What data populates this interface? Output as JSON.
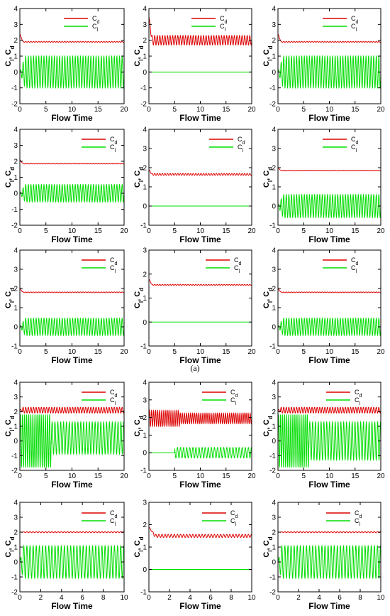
{
  "caption": "(a)",
  "colors": {
    "cd": "#dd0000",
    "cl": "#00dd00"
  },
  "chart_data": [
    {
      "type": "line",
      "xlabel": "Flow Time",
      "ylabel": "C_l, C_d",
      "xlim": [
        0,
        20
      ],
      "ylim": [
        -2,
        4
      ],
      "xticks": [
        0,
        5,
        10,
        15,
        20
      ],
      "yticks": [
        -2,
        -1,
        0,
        1,
        2,
        3,
        4
      ],
      "series": [
        {
          "name": "C_d",
          "mean": 1.9,
          "amplitude": 0.03,
          "period": 0.5,
          "initial_peak": 2.4
        },
        {
          "name": "C_l",
          "mean": 0.0,
          "amplitude": 1.0,
          "period": 0.5,
          "growth_time": 1.0
        }
      ]
    },
    {
      "type": "line",
      "xlabel": "Flow Time",
      "ylabel": "C_l, C_d",
      "xlim": [
        0,
        20
      ],
      "ylim": [
        -2,
        4
      ],
      "xticks": [
        0,
        5,
        10,
        15,
        20
      ],
      "yticks": [
        -2,
        -1,
        0,
        1,
        2,
        3,
        4
      ],
      "series": [
        {
          "name": "C_d",
          "mean": 2.0,
          "amplitude": 0.3,
          "period": 0.5,
          "initial_peak": 3.5
        },
        {
          "name": "C_l",
          "mean": 0.0,
          "amplitude": 0.0,
          "period": 0.5
        }
      ]
    },
    {
      "type": "line",
      "xlabel": "Flow Time",
      "ylabel": "C_l, C_d",
      "xlim": [
        0,
        20
      ],
      "ylim": [
        -2,
        4
      ],
      "xticks": [
        0,
        5,
        10,
        15,
        20
      ],
      "yticks": [
        -2,
        -1,
        0,
        1,
        2,
        3,
        4
      ],
      "series": [
        {
          "name": "C_d",
          "mean": 1.9,
          "amplitude": 0.03,
          "period": 0.5,
          "initial_peak": 2.4
        },
        {
          "name": "C_l",
          "mean": 0.0,
          "amplitude": 1.0,
          "period": 0.5,
          "growth_time": 1.0
        }
      ]
    },
    {
      "type": "line",
      "xlabel": "Flow Time",
      "ylabel": "C_l, C_d",
      "xlim": [
        0,
        20
      ],
      "ylim": [
        -2,
        4
      ],
      "xticks": [
        0,
        5,
        10,
        15,
        20
      ],
      "yticks": [
        -2,
        -1,
        0,
        1,
        2,
        3,
        4
      ],
      "series": [
        {
          "name": "C_d",
          "mean": 1.85,
          "amplitude": 0.02,
          "period": 0.5,
          "initial_peak": 2.1
        },
        {
          "name": "C_l",
          "mean": 0.0,
          "amplitude": 0.55,
          "period": 0.5,
          "growth_time": 1.0
        }
      ]
    },
    {
      "type": "line",
      "xlabel": "Flow Time",
      "ylabel": "C_l, C_d",
      "xlim": [
        0,
        20
      ],
      "ylim": [
        -1,
        4
      ],
      "xticks": [
        0,
        5,
        10,
        15,
        20
      ],
      "yticks": [
        -1,
        0,
        1,
        2,
        3,
        4
      ],
      "series": [
        {
          "name": "C_d",
          "mean": 1.65,
          "amplitude": 0.05,
          "period": 0.5,
          "initial_peak": 1.9
        },
        {
          "name": "C_l",
          "mean": 0.0,
          "amplitude": 0.0,
          "period": 0.5
        }
      ]
    },
    {
      "type": "line",
      "xlabel": "Flow Time",
      "ylabel": "C_l, C_d",
      "xlim": [
        0,
        20
      ],
      "ylim": [
        -1,
        4
      ],
      "xticks": [
        0,
        5,
        10,
        15,
        20
      ],
      "yticks": [
        -1,
        0,
        1,
        2,
        3,
        4
      ],
      "series": [
        {
          "name": "C_d",
          "mean": 1.85,
          "amplitude": 0.02,
          "period": 0.5,
          "initial_peak": 2.0
        },
        {
          "name": "C_l",
          "mean": 0.0,
          "amplitude": 0.6,
          "period": 0.5,
          "growth_time": 1.0
        }
      ]
    },
    {
      "type": "line",
      "xlabel": "Flow Time",
      "ylabel": "C_l, C_d",
      "xlim": [
        0,
        20
      ],
      "ylim": [
        -1,
        4
      ],
      "xticks": [
        0,
        5,
        10,
        15,
        20
      ],
      "yticks": [
        -1,
        0,
        1,
        2,
        3,
        4
      ],
      "series": [
        {
          "name": "C_d",
          "mean": 1.8,
          "amplitude": 0.02,
          "period": 0.5,
          "initial_peak": 2.0
        },
        {
          "name": "C_l",
          "mean": 0.0,
          "amplitude": 0.45,
          "period": 0.5,
          "growth_time": 1.0
        }
      ]
    },
    {
      "type": "line",
      "xlabel": "Flow Time",
      "ylabel": "C_l, C_d",
      "xlim": [
        0,
        20
      ],
      "ylim": [
        -1,
        3
      ],
      "xticks": [
        0,
        5,
        10,
        15,
        20
      ],
      "yticks": [
        -1,
        0,
        1,
        2,
        3
      ],
      "series": [
        {
          "name": "C_d",
          "mean": 1.55,
          "amplitude": 0.02,
          "period": 0.5,
          "initial_peak": 1.8
        },
        {
          "name": "C_l",
          "mean": 0.0,
          "amplitude": 0.0,
          "period": 0.5
        }
      ]
    },
    {
      "type": "line",
      "xlabel": "Flow Time",
      "ylabel": "C_l, C_d",
      "xlim": [
        0,
        20
      ],
      "ylim": [
        -1,
        4
      ],
      "xticks": [
        0,
        5,
        10,
        15,
        20
      ],
      "yticks": [
        -1,
        0,
        1,
        2,
        3,
        4
      ],
      "series": [
        {
          "name": "C_d",
          "mean": 1.8,
          "amplitude": 0.02,
          "period": 0.5,
          "initial_peak": 2.0
        },
        {
          "name": "C_l",
          "mean": 0.0,
          "amplitude": 0.45,
          "period": 0.5,
          "growth_time": 1.0
        }
      ]
    },
    {
      "type": "line",
      "xlabel": "Flow Time",
      "ylabel": "C_l, C_d",
      "xlim": [
        0,
        20
      ],
      "ylim": [
        -2,
        4
      ],
      "xticks": [
        0,
        5,
        10,
        15,
        20
      ],
      "yticks": [
        -2,
        -1,
        0,
        1,
        2,
        3,
        4
      ],
      "series": [
        {
          "name": "C_d",
          "mean": 2.1,
          "amplitude": 0.2,
          "period": 0.5,
          "initial_peak": 2.1
        },
        {
          "name": "C_l",
          "mean": 0.0,
          "amplitude": 1.8,
          "period": 0.4,
          "change_time": 6,
          "mean_after": 0.2,
          "amplitude_after": 1.1,
          "period_after": 0.55
        }
      ]
    },
    {
      "type": "line",
      "xlabel": "Flow Time",
      "ylabel": "C_l, C_d",
      "xlim": [
        0,
        20
      ],
      "ylim": [
        -1,
        4
      ],
      "xticks": [
        0,
        5,
        10,
        15,
        20
      ],
      "yticks": [
        -1,
        0,
        1,
        2,
        3,
        4
      ],
      "series": [
        {
          "name": "C_d",
          "mean": 1.95,
          "amplitude": 0.45,
          "period": 0.4,
          "change_time": 6,
          "mean_after": 1.95,
          "amplitude_after": 0.3,
          "period_after": 0.4
        },
        {
          "name": "C_l",
          "mean": 0.0,
          "amplitude": 0.0,
          "period": 0.6,
          "change_time": 5,
          "mean_after": 0.0,
          "amplitude_after": 0.3,
          "period_after": 0.6
        }
      ]
    },
    {
      "type": "line",
      "xlabel": "Flow Time",
      "ylabel": "C_l, C_d",
      "xlim": [
        0,
        20
      ],
      "ylim": [
        -2,
        4
      ],
      "xticks": [
        0,
        5,
        10,
        15,
        20
      ],
      "yticks": [
        -2,
        -1,
        0,
        1,
        2,
        3,
        4
      ],
      "series": [
        {
          "name": "C_d",
          "mean": 2.1,
          "amplitude": 0.2,
          "period": 0.5,
          "initial_peak": 2.1
        },
        {
          "name": "C_l",
          "mean": 0.0,
          "amplitude": 1.8,
          "period": 0.4,
          "change_time": 6,
          "mean_after": 0.0,
          "amplitude_after": 1.3,
          "period_after": 0.55
        }
      ]
    },
    {
      "type": "line",
      "xlabel": "Flow Time",
      "ylabel": "C_l, C_d",
      "xlim": [
        0,
        10
      ],
      "ylim": [
        -2,
        4
      ],
      "xticks": [
        0,
        2,
        4,
        6,
        8,
        10
      ],
      "yticks": [
        -2,
        -1,
        0,
        1,
        2,
        3,
        4
      ],
      "series": [
        {
          "name": "C_d",
          "mean": 2.0,
          "amplitude": 0.04,
          "period": 0.3,
          "initial_peak": 2.0
        },
        {
          "name": "C_l",
          "mean": 0.0,
          "amplitude": 1.1,
          "period": 0.3,
          "growth_time": 0.3
        }
      ]
    },
    {
      "type": "line",
      "xlabel": "Flow Time",
      "ylabel": "C_l, C_d",
      "xlim": [
        0,
        10
      ],
      "ylim": [
        -1,
        3
      ],
      "xticks": [
        0,
        2,
        4,
        6,
        8,
        10
      ],
      "yticks": [
        -1,
        0,
        1,
        2,
        3
      ],
      "series": [
        {
          "name": "C_d",
          "mean": 1.5,
          "amplitude": 0.07,
          "period": 0.3,
          "initial_peak": 1.9
        },
        {
          "name": "C_l",
          "mean": 0.0,
          "amplitude": 0.0,
          "period": 0.3
        }
      ]
    },
    {
      "type": "line",
      "xlabel": "Flow Time",
      "ylabel": "C_l, C_d",
      "xlim": [
        0,
        10
      ],
      "ylim": [
        -2,
        4
      ],
      "xticks": [
        0,
        2,
        4,
        6,
        8,
        10
      ],
      "yticks": [
        -2,
        -1,
        0,
        1,
        2,
        3,
        4
      ],
      "series": [
        {
          "name": "C_d",
          "mean": 2.0,
          "amplitude": 0.04,
          "period": 0.3,
          "initial_peak": 2.0
        },
        {
          "name": "C_l",
          "mean": 0.0,
          "amplitude": 1.1,
          "period": 0.3,
          "growth_time": 0.3
        }
      ]
    }
  ]
}
